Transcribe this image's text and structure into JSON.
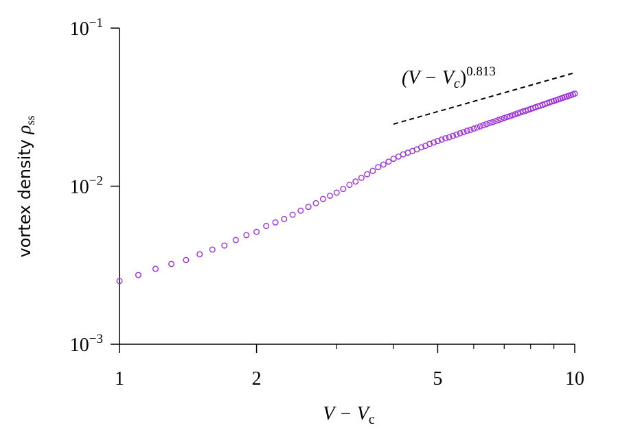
{
  "chart_data": {
    "type": "scatter",
    "log_x": true,
    "log_y": true,
    "xlabel": {
      "base": "V − V",
      "sub": "c"
    },
    "ylabel": {
      "text": "vortex density ",
      "symbol": "ρ",
      "sub": "ss"
    },
    "xlim": [
      1,
      10
    ],
    "ylim": [
      0.001,
      0.1
    ],
    "xticks": [
      1,
      2,
      5,
      10
    ],
    "xminor": [
      3,
      4,
      6,
      7,
      8,
      9
    ],
    "yticks": [
      {
        "value": 0.1,
        "label": "10",
        "exponent": "−1"
      },
      {
        "value": 0.01,
        "label": "10",
        "exponent": "−2"
      },
      {
        "value": 0.001,
        "label": "10",
        "exponent": "−3"
      }
    ],
    "series": [
      {
        "color": "#9b30d9",
        "x": [
          1.0,
          1.1,
          1.2,
          1.3,
          1.4,
          1.5,
          1.6,
          1.7,
          1.8,
          1.9,
          2.0,
          2.1,
          2.2,
          2.3,
          2.4,
          2.5,
          2.6,
          2.7,
          2.8,
          2.9,
          3.0,
          3.1,
          3.2,
          3.3,
          3.4,
          3.5,
          3.6,
          3.7,
          3.8,
          3.9,
          4.0,
          4.1,
          4.2,
          4.3,
          4.4,
          4.5,
          4.6,
          4.7,
          4.8,
          4.9,
          5.0,
          5.1,
          5.2,
          5.3,
          5.4,
          5.5,
          5.6,
          5.7,
          5.8,
          5.9,
          6.0,
          6.1,
          6.2,
          6.3,
          6.4,
          6.5,
          6.6,
          6.7,
          6.8,
          6.9,
          7.0,
          7.1,
          7.2,
          7.3,
          7.4,
          7.5,
          7.6,
          7.7,
          7.8,
          7.9,
          8.0,
          8.1,
          8.2,
          8.3,
          8.4,
          8.5,
          8.6,
          8.7,
          8.8,
          8.9,
          9.0,
          9.1,
          9.2,
          9.3,
          9.4,
          9.5,
          9.6,
          9.7,
          9.8,
          9.9,
          10.0
        ],
        "values": [
          0.00251,
          0.00274,
          0.003,
          0.00322,
          0.00341,
          0.00371,
          0.00397,
          0.00421,
          0.00456,
          0.0049,
          0.00514,
          0.0056,
          0.0059,
          0.0062,
          0.0066,
          0.007,
          0.0074,
          0.0078,
          0.0083,
          0.0087,
          0.0091,
          0.0096,
          0.0102,
          0.0107,
          0.0113,
          0.0119,
          0.0125,
          0.0132,
          0.0137,
          0.0143,
          0.0149,
          0.0154,
          0.0159,
          0.0163,
          0.0167,
          0.0171,
          0.0176,
          0.018,
          0.0185,
          0.0189,
          0.0193,
          0.0197,
          0.0201,
          0.0204,
          0.0208,
          0.0212,
          0.0216,
          0.022,
          0.0224,
          0.0227,
          0.0231,
          0.0235,
          0.0239,
          0.0243,
          0.0247,
          0.0251,
          0.0254,
          0.0258,
          0.0262,
          0.0266,
          0.027,
          0.0274,
          0.0277,
          0.0281,
          0.0285,
          0.0289,
          0.0293,
          0.0297,
          0.03,
          0.0304,
          0.0308,
          0.0312,
          0.0316,
          0.032,
          0.0323,
          0.0327,
          0.0331,
          0.0335,
          0.0339,
          0.0343,
          0.0346,
          0.035,
          0.0354,
          0.0358,
          0.0362,
          0.0366,
          0.0369,
          0.0373,
          0.0377,
          0.0381,
          0.0385
        ]
      }
    ],
    "fit_line": {
      "label_open": "(V − V",
      "label_sub": "c",
      "label_close": ")",
      "exponent": 0.813,
      "color": "#000000",
      "x": [
        4.0,
        10
      ],
      "values": [
        0.0247,
        0.0522
      ]
    }
  }
}
